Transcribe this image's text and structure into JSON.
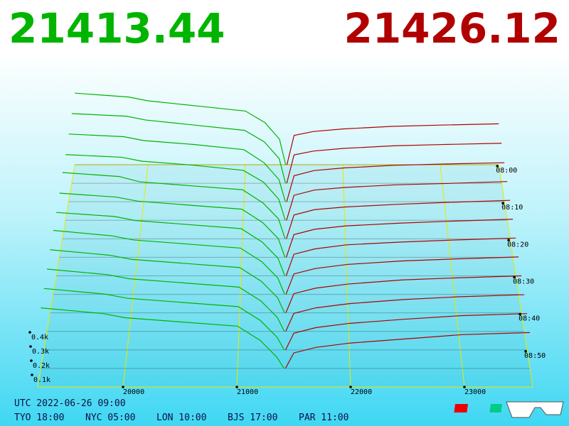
{
  "chart_data": {
    "type": "depth3d",
    "bid_price": "21413.44",
    "ask_price": "21426.12",
    "bid_color": "#00b400",
    "ask_color": "#b00000",
    "xlim": [
      19250,
      23600
    ],
    "xticks": [
      20000,
      21000,
      22000,
      23000
    ],
    "zticks": [
      {
        "value": 100,
        "label": "0.1k"
      },
      {
        "value": 200,
        "label": "0.2k"
      },
      {
        "value": 300,
        "label": "0.3k"
      },
      {
        "value": 400,
        "label": "0.4k"
      }
    ],
    "tticks": [
      "08:00",
      "08:10",
      "08:20",
      "08:30",
      "08:40",
      "08:50"
    ],
    "bid_x": [
      19250,
      19800,
      20000,
      20500,
      21000,
      21200,
      21350,
      21413.44
    ],
    "ask_x": [
      21426.12,
      21500,
      21700,
      22000,
      22500,
      23000,
      23600
    ],
    "snapshots": [
      {
        "time": "08:00",
        "bids": [
          560,
          530,
          500,
          460,
          420,
          330,
          200,
          0
        ],
        "asks": [
          0,
          230,
          260,
          280,
          300,
          310,
          320
        ]
      },
      {
        "time": "08:05",
        "bids": [
          540,
          520,
          490,
          450,
          410,
          320,
          190,
          0
        ],
        "asks": [
          0,
          220,
          250,
          270,
          290,
          300,
          310
        ]
      },
      {
        "time": "08:10",
        "bids": [
          520,
          500,
          470,
          440,
          400,
          300,
          170,
          0
        ],
        "asks": [
          0,
          200,
          240,
          260,
          280,
          290,
          300
        ]
      },
      {
        "time": "08:15",
        "bids": [
          500,
          480,
          450,
          420,
          380,
          290,
          160,
          0
        ],
        "asks": [
          0,
          190,
          230,
          250,
          270,
          280,
          295
        ]
      },
      {
        "time": "08:20",
        "bids": [
          500,
          470,
          430,
          400,
          370,
          270,
          150,
          0
        ],
        "asks": [
          0,
          180,
          220,
          240,
          260,
          275,
          290
        ]
      },
      {
        "time": "08:25",
        "bids": [
          480,
          450,
          420,
          390,
          360,
          260,
          140,
          0
        ],
        "asks": [
          0,
          170,
          210,
          235,
          255,
          270,
          285
        ]
      },
      {
        "time": "08:30",
        "bids": [
          470,
          440,
          410,
          380,
          350,
          250,
          130,
          0
        ],
        "asks": [
          0,
          160,
          200,
          230,
          250,
          265,
          280
        ]
      },
      {
        "time": "08:35",
        "bids": [
          470,
          430,
          400,
          370,
          340,
          240,
          120,
          0
        ],
        "asks": [
          0,
          150,
          190,
          220,
          245,
          260,
          275
        ]
      },
      {
        "time": "08:40",
        "bids": [
          460,
          420,
          390,
          360,
          330,
          230,
          110,
          0
        ],
        "asks": [
          0,
          140,
          180,
          210,
          240,
          255,
          270
        ]
      },
      {
        "time": "08:45",
        "bids": [
          450,
          410,
          380,
          350,
          320,
          220,
          100,
          0
        ],
        "asks": [
          0,
          130,
          170,
          200,
          230,
          250,
          265
        ]
      },
      {
        "time": "08:50",
        "bids": [
          440,
          400,
          370,
          340,
          310,
          210,
          90,
          0
        ],
        "asks": [
          0,
          120,
          160,
          190,
          220,
          245,
          260
        ]
      },
      {
        "time": "08:55",
        "bids": [
          430,
          390,
          360,
          330,
          300,
          200,
          80,
          0
        ],
        "asks": [
          0,
          110,
          150,
          180,
          210,
          240,
          255
        ]
      }
    ]
  },
  "footer": {
    "utc": "UTC 2022-06-26 09:00",
    "cities": [
      "TYO 18:00",
      "NYC 05:00",
      "LON 10:00",
      "BJS 17:00",
      "PAR 11:00"
    ]
  }
}
